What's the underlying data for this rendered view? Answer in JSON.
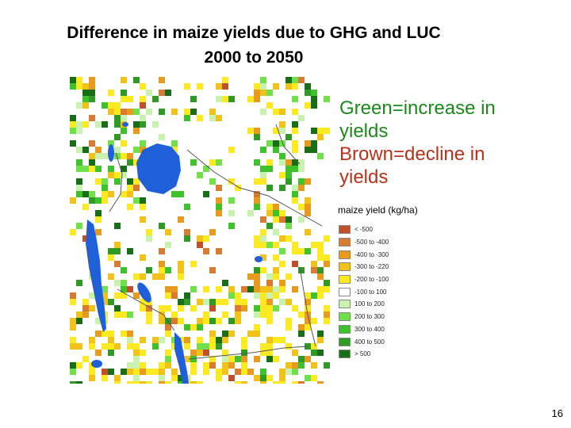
{
  "title": {
    "line1": "Difference in maize yields due to GHG and LUC",
    "line2": "2000 to 2050"
  },
  "note": {
    "green": "Green=increase in yields",
    "brown": "Brown=decline in yields"
  },
  "legend": {
    "title": "maize yield (kg/ha)",
    "items": [
      {
        "label": "< -500",
        "color": "#c0502c"
      },
      {
        "label": "-500 to -400",
        "color": "#d97a33"
      },
      {
        "label": "-400 to -300",
        "color": "#e89a1e"
      },
      {
        "label": "-300 to -220",
        "color": "#f3c21a"
      },
      {
        "label": "-200 to -100",
        "color": "#fbea22"
      },
      {
        "label": "-100 to 100",
        "color": "#ffffff"
      },
      {
        "label": "100 to 200",
        "color": "#c9f2b0"
      },
      {
        "label": "200 to 300",
        "color": "#6fe04a"
      },
      {
        "label": "300 to 400",
        "color": "#3ec22c"
      },
      {
        "label": "400 to 500",
        "color": "#2f9a24"
      },
      {
        "label": "> 500",
        "color": "#186e16"
      }
    ]
  },
  "map": {
    "lake_color": "#1f5fd8",
    "border_color": "#555555"
  },
  "page_number": "16"
}
